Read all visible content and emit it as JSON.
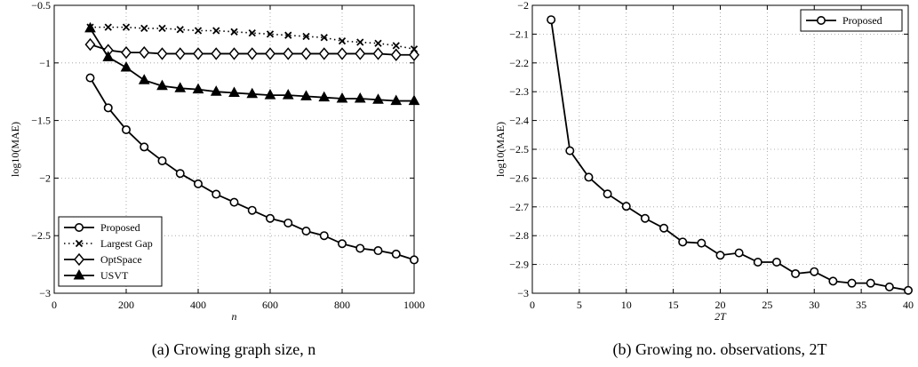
{
  "chart_data": [
    {
      "type": "line",
      "caption": "(a) Growing graph size, n",
      "xlabel": "n",
      "ylabel": "log10(MAE)",
      "xlim": [
        0,
        1000
      ],
      "ylim": [
        -3,
        -0.5
      ],
      "xticks": [
        0,
        200,
        400,
        600,
        800,
        1000
      ],
      "yticks": [
        -3,
        -2.5,
        -2,
        -1.5,
        -1,
        -0.5
      ],
      "xtick_labels": [
        "0",
        "200",
        "400",
        "600",
        "800",
        "1000"
      ],
      "ytick_labels": [
        "−3",
        "−2.5",
        "−2",
        "−1.5",
        "−1",
        "−0.5"
      ],
      "grid": true,
      "legend_position": "bottom-left",
      "x": [
        100,
        150,
        200,
        250,
        300,
        350,
        400,
        450,
        500,
        550,
        600,
        650,
        700,
        750,
        800,
        850,
        900,
        950,
        1000
      ],
      "series": [
        {
          "name": "Proposed",
          "marker": "circle",
          "line": "solid",
          "values": [
            -1.13,
            -1.39,
            -1.58,
            -1.73,
            -1.85,
            -1.96,
            -2.05,
            -2.14,
            -2.21,
            -2.28,
            -2.35,
            -2.39,
            -2.46,
            -2.5,
            -2.57,
            -2.61,
            -2.63,
            -2.66,
            -2.71
          ]
        },
        {
          "name": "Largest Gap",
          "marker": "x",
          "line": "dotted",
          "values": [
            -0.69,
            -0.69,
            -0.69,
            -0.7,
            -0.7,
            -0.71,
            -0.72,
            -0.72,
            -0.73,
            -0.74,
            -0.75,
            -0.76,
            -0.77,
            -0.78,
            -0.81,
            -0.82,
            -0.83,
            -0.85,
            -0.88
          ]
        },
        {
          "name": "OptSpace",
          "marker": "diamond",
          "line": "solid",
          "values": [
            -0.84,
            -0.89,
            -0.91,
            -0.91,
            -0.92,
            -0.92,
            -0.92,
            -0.92,
            -0.92,
            -0.92,
            -0.92,
            -0.92,
            -0.92,
            -0.92,
            -0.92,
            -0.92,
            -0.92,
            -0.93,
            -0.93
          ]
        },
        {
          "name": "USVT",
          "marker": "triangle",
          "line": "solid",
          "values": [
            -0.7,
            -0.95,
            -1.04,
            -1.15,
            -1.2,
            -1.22,
            -1.23,
            -1.25,
            -1.26,
            -1.27,
            -1.28,
            -1.28,
            -1.29,
            -1.3,
            -1.31,
            -1.31,
            -1.32,
            -1.33,
            -1.33
          ]
        }
      ]
    },
    {
      "type": "line",
      "caption": "(b) Growing no. observations, 2T",
      "xlabel": "2T",
      "ylabel": "log10(MAE)",
      "xlim": [
        0,
        40
      ],
      "ylim": [
        -3,
        -2
      ],
      "xticks": [
        0,
        5,
        10,
        15,
        20,
        25,
        30,
        35,
        40
      ],
      "yticks": [
        -3,
        -2.9,
        -2.8,
        -2.7,
        -2.6,
        -2.5,
        -2.4,
        -2.3,
        -2.2,
        -2.1,
        -2
      ],
      "xtick_labels": [
        "0",
        "5",
        "10",
        "15",
        "20",
        "25",
        "30",
        "35",
        "40"
      ],
      "ytick_labels": [
        "−3",
        "−2.9",
        "−2.8",
        "−2.7",
        "−2.6",
        "−2.5",
        "−2.4",
        "−2.3",
        "−2.2",
        "−2.1",
        "−2"
      ],
      "grid": true,
      "legend_position": "top-right",
      "x": [
        2,
        4,
        6,
        8,
        10,
        12,
        14,
        16,
        18,
        20,
        22,
        24,
        26,
        28,
        30,
        32,
        34,
        36,
        38,
        40
      ],
      "series": [
        {
          "name": "Proposed",
          "marker": "circle",
          "line": "solid",
          "values": [
            -2.05,
            -2.505,
            -2.597,
            -2.655,
            -2.698,
            -2.74,
            -2.774,
            -2.822,
            -2.826,
            -2.868,
            -2.86,
            -2.892,
            -2.892,
            -2.932,
            -2.925,
            -2.958,
            -2.965,
            -2.965,
            -2.978,
            -2.99
          ]
        }
      ]
    }
  ]
}
